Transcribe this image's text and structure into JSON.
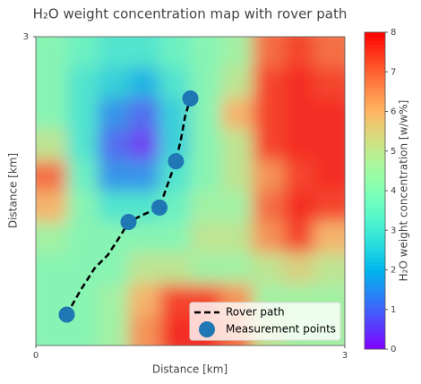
{
  "chart_data": {
    "type": "heatmap",
    "title": "H₂O weight concentration map with rover path",
    "xlabel": "Distance [km]",
    "ylabel": "Distance [km]",
    "xlim": [
      0,
      3
    ],
    "ylim": [
      0,
      3
    ],
    "xticks": [
      0,
      3
    ],
    "yticks": [
      3
    ],
    "colormap": "rainbow",
    "colorbar_label": "H₂O weight concentration [w/w%]",
    "zlim": [
      0,
      8
    ],
    "zticks": [
      0,
      1,
      2,
      3,
      4,
      5,
      6,
      7,
      8
    ],
    "z": [
      [
        4,
        3.5,
        3,
        3,
        3.5,
        4,
        4.5,
        7,
        7.5,
        7
      ],
      [
        4,
        3,
        2.5,
        2,
        3,
        4,
        5,
        7.5,
        7.8,
        7.5
      ],
      [
        4,
        3,
        1.5,
        1,
        2.5,
        4,
        6,
        7.5,
        7.8,
        7.8
      ],
      [
        5,
        3,
        1,
        0.5,
        2.5,
        4,
        5,
        7.5,
        7.8,
        7.8
      ],
      [
        7,
        3.5,
        1.5,
        1.5,
        3,
        4,
        5,
        6.5,
        7.5,
        7.8
      ],
      [
        6,
        4,
        3,
        3,
        3.5,
        4.5,
        4.5,
        7,
        7.8,
        7.5
      ],
      [
        4.5,
        4,
        4,
        4,
        4,
        5,
        5,
        6.5,
        7.5,
        6
      ],
      [
        4,
        4,
        4,
        5,
        5,
        4.5,
        4.5,
        5,
        5.5,
        5
      ],
      [
        4,
        4,
        4.5,
        6,
        7.5,
        7.5,
        6.5,
        4.5,
        4.5,
        4.5
      ],
      [
        4,
        4,
        4.5,
        6.5,
        7.8,
        7.8,
        7,
        5,
        4.5,
        4.5
      ]
    ],
    "series": [
      {
        "name": "Rover path",
        "color": "#000000",
        "x": [
          0.3,
          0.43,
          0.57,
          0.7,
          0.83,
          0.9,
          1.04,
          1.2,
          1.26,
          1.36,
          1.41,
          1.45,
          1.5
        ],
        "y": [
          0.3,
          0.53,
          0.75,
          0.88,
          1.08,
          1.2,
          1.27,
          1.34,
          1.51,
          1.79,
          2.01,
          2.23,
          2.4
        ]
      },
      {
        "name": "Measurement points",
        "color": "#1f77b4",
        "x": [
          0.3,
          0.9,
          1.2,
          1.36,
          1.5
        ],
        "y": [
          0.3,
          1.2,
          1.34,
          1.79,
          2.4
        ]
      }
    ],
    "legend": "lower right"
  }
}
